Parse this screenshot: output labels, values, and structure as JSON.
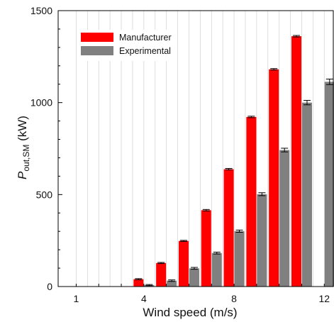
{
  "chart_data": {
    "type": "bar",
    "x": [
      1,
      2,
      3,
      4,
      5,
      6,
      7,
      8,
      9,
      10,
      11,
      12
    ],
    "x_tick_labels": [
      "1",
      "4",
      "8",
      "12"
    ],
    "x_tick_values": [
      1,
      4,
      8,
      12
    ],
    "xlim": [
      0.2,
      12.4
    ],
    "ylim": [
      0,
      1500
    ],
    "y_ticks": [
      0,
      500,
      1000,
      1500
    ],
    "xlabel": "Wind speed (m/s)",
    "ylabel": {
      "main": "P",
      "sub": "out,SM",
      "unit": " (kW)"
    },
    "grid": "vertical",
    "legend_position": "top-left",
    "series": [
      {
        "name": "Manufacturer",
        "color": "#ff0000",
        "values": [
          0,
          0,
          0,
          40,
          128,
          248,
          415,
          638,
          922,
          1181,
          1361,
          null
        ],
        "errors": [
          0,
          0,
          0,
          3,
          3,
          3,
          4,
          4,
          4,
          4,
          4,
          null
        ]
      },
      {
        "name": "Experimental",
        "color": "#808080",
        "values": [
          0,
          0,
          0,
          8,
          32,
          99,
          182,
          301,
          502,
          742,
          1000,
          1113
        ],
        "errors": [
          0,
          0,
          0,
          3,
          4,
          5,
          5,
          6,
          8,
          10,
          12,
          15
        ]
      }
    ]
  }
}
